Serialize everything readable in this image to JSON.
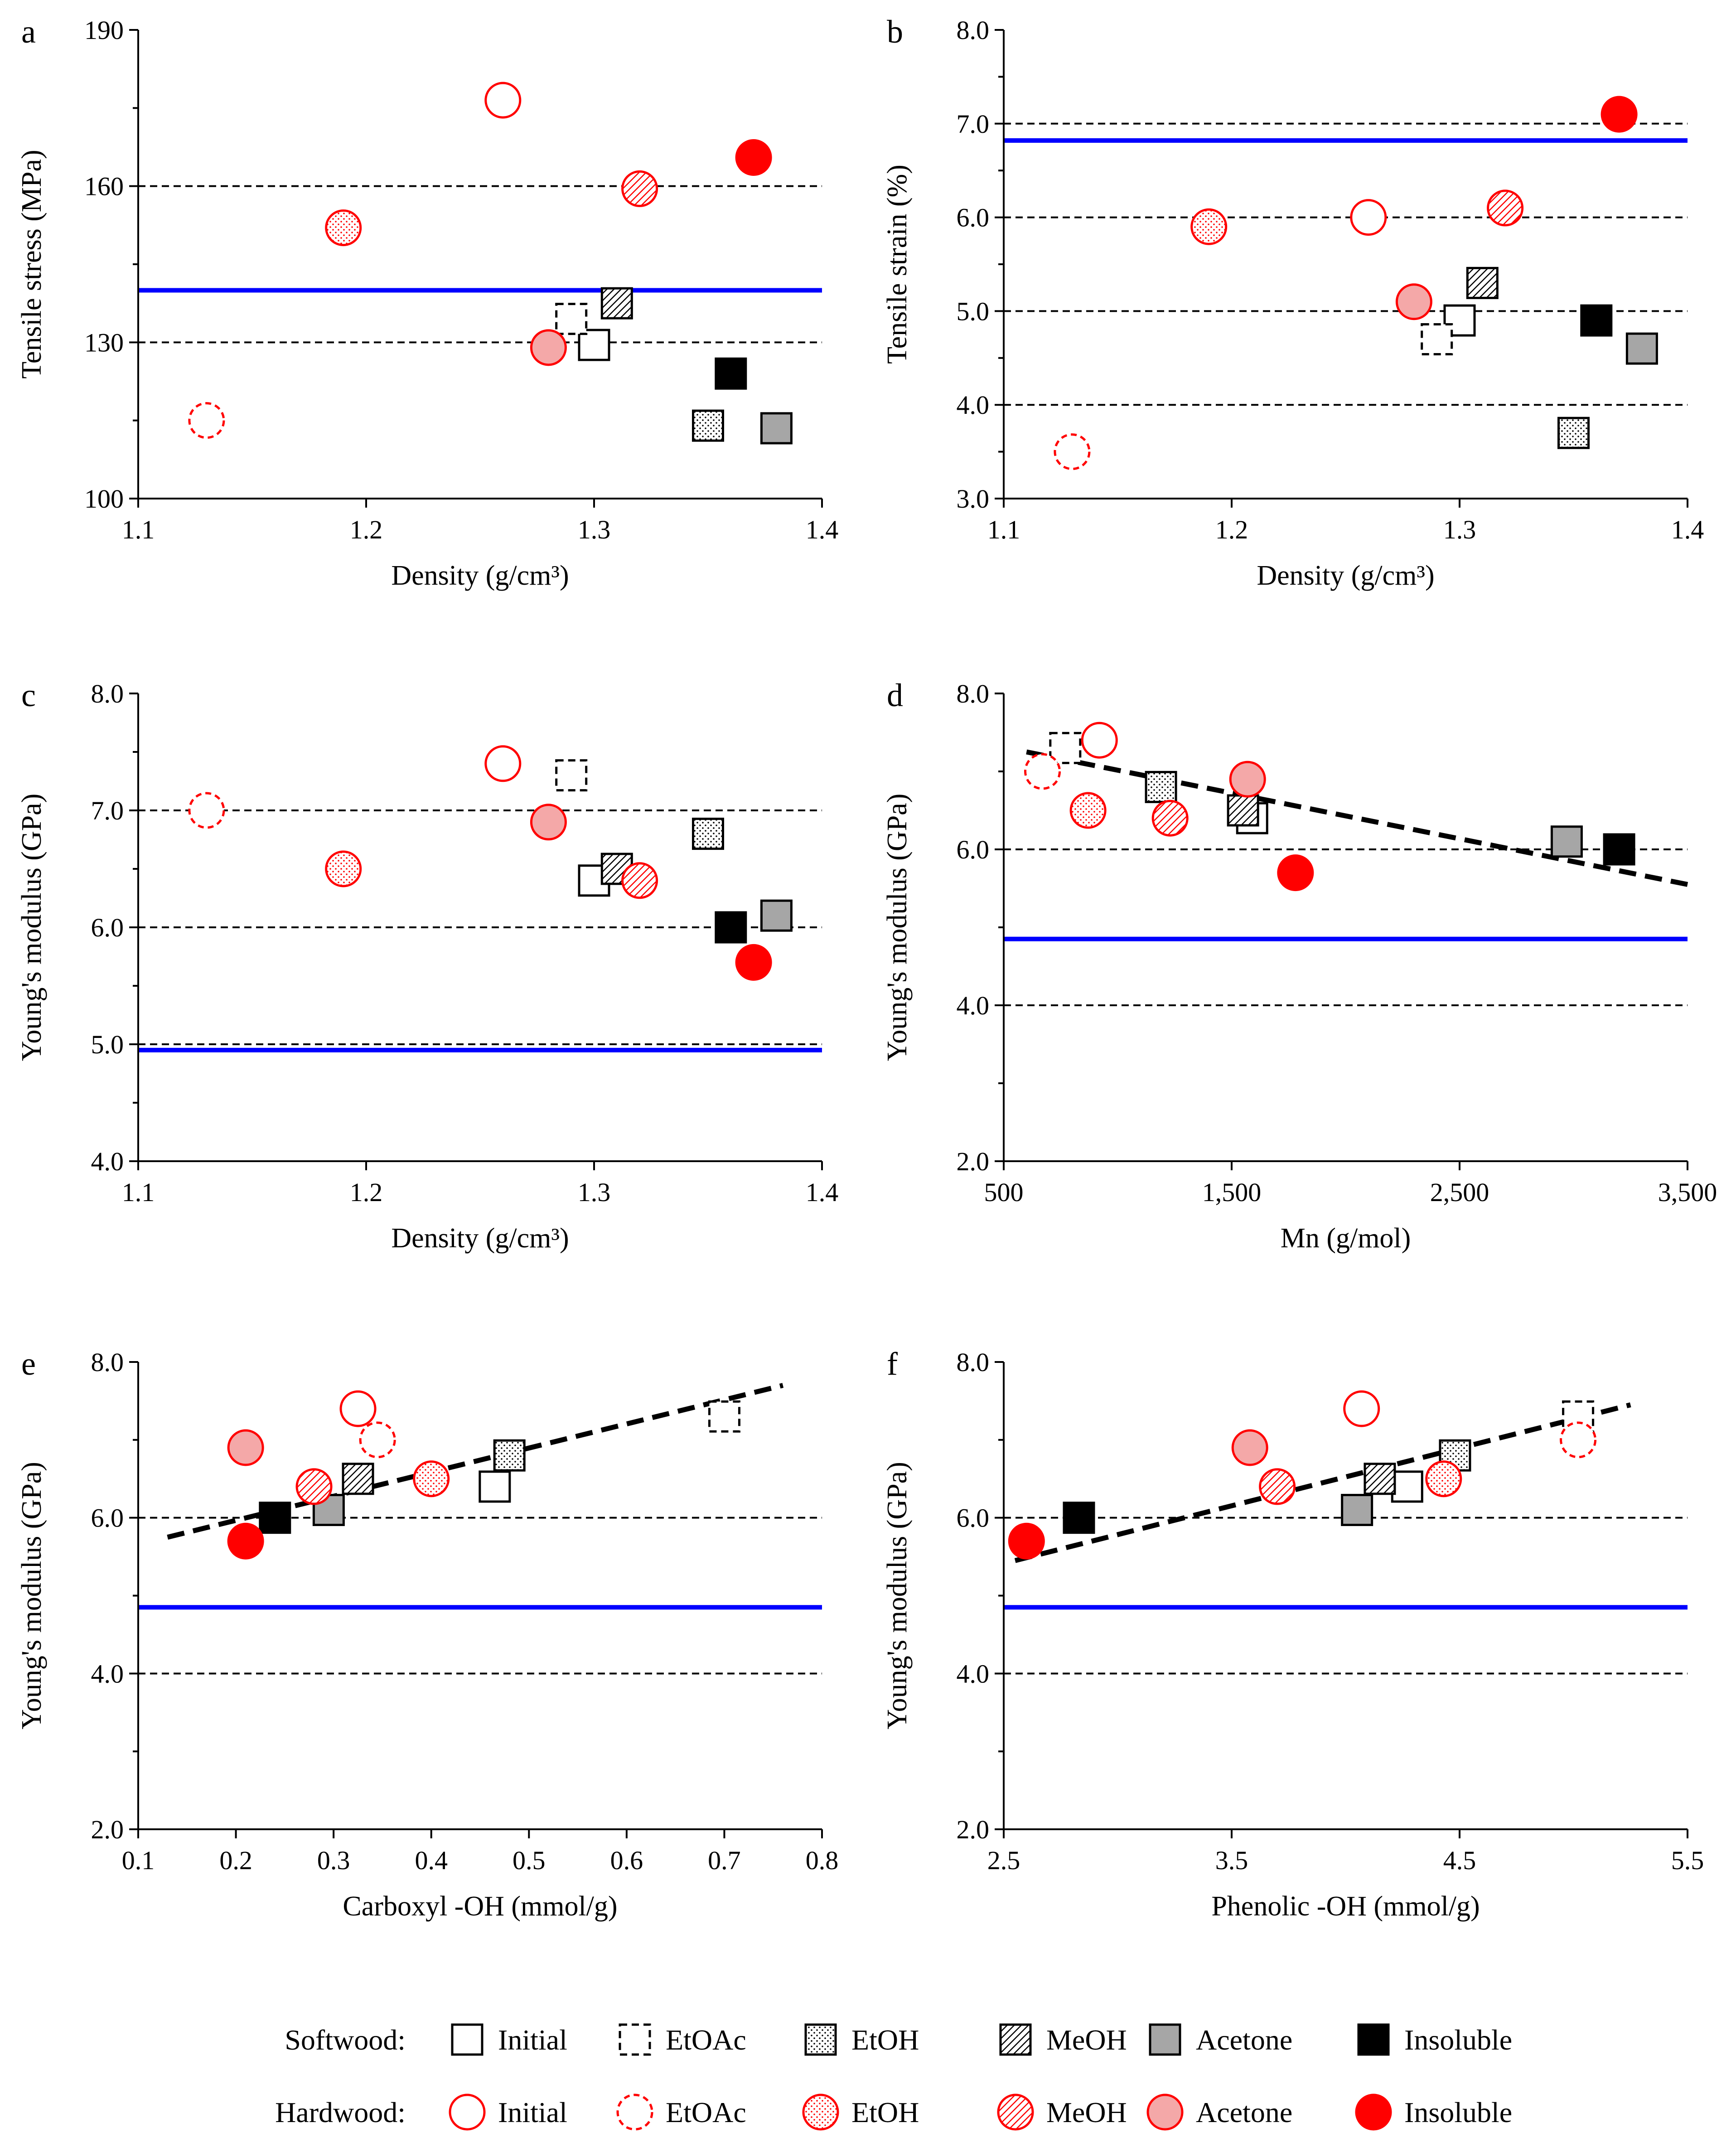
{
  "chart_data": [
    {
      "panel": "a",
      "type": "scatter",
      "xlabel": "Density (g/cm³)",
      "ylabel": "Tensile stress (MPa)",
      "xlim": [
        1.1,
        1.4
      ],
      "ylim": [
        100,
        190
      ],
      "xticks": [
        1.1,
        1.2,
        1.3,
        1.4
      ],
      "xtick_labels": [
        "1.1",
        "1.2",
        "1.3",
        "1.4"
      ],
      "yticks": [
        100,
        130,
        160,
        190
      ],
      "ytick_labels": [
        "100",
        "130",
        "160",
        "190"
      ],
      "ref_lines_dashed": [
        130,
        160
      ],
      "ref_line_blue": 140,
      "points": [
        {
          "wood": "softwood",
          "fraction": "Initial",
          "x": 1.3,
          "y": 129.5
        },
        {
          "wood": "softwood",
          "fraction": "EtOAc",
          "x": 1.29,
          "y": 134.5
        },
        {
          "wood": "softwood",
          "fraction": "EtOH",
          "x": 1.35,
          "y": 114
        },
        {
          "wood": "softwood",
          "fraction": "MeOH",
          "x": 1.31,
          "y": 137.5
        },
        {
          "wood": "softwood",
          "fraction": "Acetone",
          "x": 1.38,
          "y": 113.5
        },
        {
          "wood": "softwood",
          "fraction": "Insoluble",
          "x": 1.36,
          "y": 124
        },
        {
          "wood": "hardwood",
          "fraction": "Initial",
          "x": 1.26,
          "y": 176.5
        },
        {
          "wood": "hardwood",
          "fraction": "EtOAc",
          "x": 1.13,
          "y": 115
        },
        {
          "wood": "hardwood",
          "fraction": "EtOH",
          "x": 1.19,
          "y": 152
        },
        {
          "wood": "hardwood",
          "fraction": "MeOH",
          "x": 1.32,
          "y": 159.5
        },
        {
          "wood": "hardwood",
          "fraction": "Acetone",
          "x": 1.28,
          "y": 129
        },
        {
          "wood": "hardwood",
          "fraction": "Insoluble",
          "x": 1.37,
          "y": 165.5
        }
      ]
    },
    {
      "panel": "b",
      "type": "scatter",
      "xlabel": "Density (g/cm³)",
      "ylabel": "Tensile strain (%)",
      "xlim": [
        1.1,
        1.4
      ],
      "ylim": [
        3.0,
        8.0
      ],
      "xticks": [
        1.1,
        1.2,
        1.3,
        1.4
      ],
      "xtick_labels": [
        "1.1",
        "1.2",
        "1.3",
        "1.4"
      ],
      "yticks": [
        3,
        4,
        5,
        6,
        7,
        8
      ],
      "ytick_labels": [
        "3.0",
        "4.0",
        "5.0",
        "6.0",
        "7.0",
        "8.0"
      ],
      "ref_lines_dashed": [
        4.0,
        5.0,
        6.0,
        7.0
      ],
      "ref_line_blue": 6.82,
      "points": [
        {
          "wood": "softwood",
          "fraction": "Initial",
          "x": 1.3,
          "y": 4.9
        },
        {
          "wood": "softwood",
          "fraction": "EtOAc",
          "x": 1.29,
          "y": 4.7
        },
        {
          "wood": "softwood",
          "fraction": "EtOH",
          "x": 1.35,
          "y": 3.7
        },
        {
          "wood": "softwood",
          "fraction": "MeOH",
          "x": 1.31,
          "y": 5.3
        },
        {
          "wood": "softwood",
          "fraction": "Acetone",
          "x": 1.38,
          "y": 4.6
        },
        {
          "wood": "softwood",
          "fraction": "Insoluble",
          "x": 1.36,
          "y": 4.9
        },
        {
          "wood": "hardwood",
          "fraction": "Initial",
          "x": 1.26,
          "y": 6.0
        },
        {
          "wood": "hardwood",
          "fraction": "EtOAc",
          "x": 1.13,
          "y": 3.5
        },
        {
          "wood": "hardwood",
          "fraction": "EtOH",
          "x": 1.19,
          "y": 5.9
        },
        {
          "wood": "hardwood",
          "fraction": "MeOH",
          "x": 1.32,
          "y": 6.1
        },
        {
          "wood": "hardwood",
          "fraction": "Acetone",
          "x": 1.28,
          "y": 5.1
        },
        {
          "wood": "hardwood",
          "fraction": "Insoluble",
          "x": 1.37,
          "y": 7.1
        }
      ]
    },
    {
      "panel": "c",
      "type": "scatter",
      "xlabel": "Density (g/cm³)",
      "ylabel": "Young's modulus (GPa)",
      "xlim": [
        1.1,
        1.4
      ],
      "ylim": [
        4.0,
        8.0
      ],
      "xticks": [
        1.1,
        1.2,
        1.3,
        1.4
      ],
      "xtick_labels": [
        "1.1",
        "1.2",
        "1.3",
        "1.4"
      ],
      "yticks": [
        4,
        5,
        6,
        7,
        8
      ],
      "ytick_labels": [
        "4.0",
        "5.0",
        "6.0",
        "7.0",
        "8.0"
      ],
      "ref_lines_dashed": [
        5.0,
        6.0,
        7.0
      ],
      "ref_line_blue": 4.95,
      "points": [
        {
          "wood": "softwood",
          "fraction": "Initial",
          "x": 1.3,
          "y": 6.4
        },
        {
          "wood": "softwood",
          "fraction": "EtOAc",
          "x": 1.29,
          "y": 7.3
        },
        {
          "wood": "softwood",
          "fraction": "EtOH",
          "x": 1.35,
          "y": 6.8
        },
        {
          "wood": "softwood",
          "fraction": "MeOH",
          "x": 1.31,
          "y": 6.5
        },
        {
          "wood": "softwood",
          "fraction": "Acetone",
          "x": 1.38,
          "y": 6.1
        },
        {
          "wood": "softwood",
          "fraction": "Insoluble",
          "x": 1.36,
          "y": 6.0
        },
        {
          "wood": "hardwood",
          "fraction": "Initial",
          "x": 1.26,
          "y": 7.4
        },
        {
          "wood": "hardwood",
          "fraction": "EtOAc",
          "x": 1.13,
          "y": 7.0
        },
        {
          "wood": "hardwood",
          "fraction": "EtOH",
          "x": 1.19,
          "y": 6.5
        },
        {
          "wood": "hardwood",
          "fraction": "MeOH",
          "x": 1.32,
          "y": 6.4
        },
        {
          "wood": "hardwood",
          "fraction": "Acetone",
          "x": 1.28,
          "y": 6.9
        },
        {
          "wood": "hardwood",
          "fraction": "Insoluble",
          "x": 1.37,
          "y": 5.7
        }
      ]
    },
    {
      "panel": "d",
      "type": "scatter",
      "xlabel": "Mn (g/mol)",
      "ylabel": "Young's modulus (GPa)",
      "xlim": [
        500,
        3500
      ],
      "ylim": [
        2.0,
        8.0
      ],
      "xticks": [
        500,
        1500,
        2500,
        3500
      ],
      "xtick_labels": [
        "500",
        "1,500",
        "2,500",
        "3,500"
      ],
      "yticks": [
        2,
        4,
        6,
        8
      ],
      "ytick_labels": [
        "2.0",
        "4.0",
        "6.0",
        "8.0"
      ],
      "ref_lines_dashed": [
        4.0,
        6.0
      ],
      "ref_line_blue": 4.85,
      "trendline": {
        "x": [
          600,
          3500
        ],
        "y": [
          7.25,
          5.55
        ]
      },
      "points": [
        {
          "wood": "softwood",
          "fraction": "Initial",
          "x": 1590,
          "y": 6.4
        },
        {
          "wood": "softwood",
          "fraction": "EtOAc",
          "x": 770,
          "y": 7.3
        },
        {
          "wood": "softwood",
          "fraction": "EtOH",
          "x": 1190,
          "y": 6.8
        },
        {
          "wood": "softwood",
          "fraction": "MeOH",
          "x": 1550,
          "y": 6.5
        },
        {
          "wood": "softwood",
          "fraction": "Acetone",
          "x": 2970,
          "y": 6.1
        },
        {
          "wood": "softwood",
          "fraction": "Insoluble",
          "x": 3200,
          "y": 6.0
        },
        {
          "wood": "hardwood",
          "fraction": "Initial",
          "x": 920,
          "y": 7.4
        },
        {
          "wood": "hardwood",
          "fraction": "EtOAc",
          "x": 670,
          "y": 7.0
        },
        {
          "wood": "hardwood",
          "fraction": "EtOH",
          "x": 870,
          "y": 6.5
        },
        {
          "wood": "hardwood",
          "fraction": "MeOH",
          "x": 1230,
          "y": 6.4
        },
        {
          "wood": "hardwood",
          "fraction": "Acetone",
          "x": 1570,
          "y": 6.9
        },
        {
          "wood": "hardwood",
          "fraction": "Insoluble",
          "x": 1780,
          "y": 5.7
        }
      ]
    },
    {
      "panel": "e",
      "type": "scatter",
      "xlabel": "Carboxyl -OH (mmol/g)",
      "ylabel": "Young's modulus (GPa)",
      "xlim": [
        0.1,
        0.8
      ],
      "ylim": [
        2.0,
        8.0
      ],
      "xticks": [
        0.1,
        0.2,
        0.3,
        0.4,
        0.5,
        0.6,
        0.7,
        0.8
      ],
      "xtick_labels": [
        "0.1",
        "0.2",
        "0.3",
        "0.4",
        "0.5",
        "0.6",
        "0.7",
        "0.8"
      ],
      "yticks": [
        2,
        4,
        6,
        8
      ],
      "ytick_labels": [
        "2.0",
        "4.0",
        "6.0",
        "8.0"
      ],
      "ref_lines_dashed": [
        4.0,
        6.0
      ],
      "ref_line_blue": 4.85,
      "trendline": {
        "x": [
          0.13,
          0.76
        ],
        "y": [
          5.75,
          7.7
        ]
      },
      "points": [
        {
          "wood": "softwood",
          "fraction": "Initial",
          "x": 0.465,
          "y": 6.4
        },
        {
          "wood": "softwood",
          "fraction": "EtOAc",
          "x": 0.7,
          "y": 7.3
        },
        {
          "wood": "softwood",
          "fraction": "EtOH",
          "x": 0.48,
          "y": 6.8
        },
        {
          "wood": "softwood",
          "fraction": "MeOH",
          "x": 0.325,
          "y": 6.5
        },
        {
          "wood": "softwood",
          "fraction": "Acetone",
          "x": 0.295,
          "y": 6.1
        },
        {
          "wood": "softwood",
          "fraction": "Insoluble",
          "x": 0.24,
          "y": 6.0
        },
        {
          "wood": "hardwood",
          "fraction": "Initial",
          "x": 0.325,
          "y": 7.4
        },
        {
          "wood": "hardwood",
          "fraction": "EtOAc",
          "x": 0.345,
          "y": 7.0
        },
        {
          "wood": "hardwood",
          "fraction": "EtOH",
          "x": 0.4,
          "y": 6.5
        },
        {
          "wood": "hardwood",
          "fraction": "MeOH",
          "x": 0.28,
          "y": 6.4
        },
        {
          "wood": "hardwood",
          "fraction": "Acetone",
          "x": 0.21,
          "y": 6.9
        },
        {
          "wood": "hardwood",
          "fraction": "Insoluble",
          "x": 0.21,
          "y": 5.7
        }
      ]
    },
    {
      "panel": "f",
      "type": "scatter",
      "xlabel": "Phenolic -OH (mmol/g)",
      "ylabel": "Young's modulus (GPa)",
      "xlim": [
        2.5,
        5.5
      ],
      "ylim": [
        2.0,
        8.0
      ],
      "xticks": [
        2.5,
        3.5,
        4.5,
        5.5
      ],
      "xtick_labels": [
        "2.5",
        "3.5",
        "4.5",
        "5.5"
      ],
      "yticks": [
        2,
        4,
        6,
        8
      ],
      "ytick_labels": [
        "2.0",
        "4.0",
        "6.0",
        "8.0"
      ],
      "ref_lines_dashed": [
        4.0,
        6.0
      ],
      "ref_line_blue": 4.85,
      "trendline": {
        "x": [
          2.55,
          5.25
        ],
        "y": [
          5.45,
          7.45
        ]
      },
      "points": [
        {
          "wood": "softwood",
          "fraction": "Initial",
          "x": 4.27,
          "y": 6.4
        },
        {
          "wood": "softwood",
          "fraction": "EtOAc",
          "x": 5.02,
          "y": 7.3
        },
        {
          "wood": "softwood",
          "fraction": "EtOH",
          "x": 4.48,
          "y": 6.8
        },
        {
          "wood": "softwood",
          "fraction": "MeOH",
          "x": 4.15,
          "y": 6.5
        },
        {
          "wood": "softwood",
          "fraction": "Acetone",
          "x": 4.05,
          "y": 6.1
        },
        {
          "wood": "softwood",
          "fraction": "Insoluble",
          "x": 2.83,
          "y": 6.0
        },
        {
          "wood": "hardwood",
          "fraction": "Initial",
          "x": 4.07,
          "y": 7.4
        },
        {
          "wood": "hardwood",
          "fraction": "EtOAc",
          "x": 5.02,
          "y": 7.0
        },
        {
          "wood": "hardwood",
          "fraction": "EtOH",
          "x": 4.43,
          "y": 6.5
        },
        {
          "wood": "hardwood",
          "fraction": "MeOH",
          "x": 3.7,
          "y": 6.4
        },
        {
          "wood": "hardwood",
          "fraction": "Acetone",
          "x": 3.58,
          "y": 6.9
        },
        {
          "wood": "hardwood",
          "fraction": "Insoluble",
          "x": 2.6,
          "y": 5.7
        }
      ]
    }
  ],
  "legend": {
    "rows": [
      {
        "wood": "softwood",
        "label": "Softwood:"
      },
      {
        "wood": "hardwood",
        "label": "Hardwood:"
      }
    ],
    "fractions": [
      "Initial",
      "EtOAc",
      "EtOH",
      "MeOH",
      "Acetone",
      "Insoluble"
    ]
  },
  "colors": {
    "softwood": "#000000",
    "hardwood": "#ff0000",
    "hardwood_light": "#f4a8a8",
    "acetone_gray": "#a6a6a6",
    "ref_blue": "#0000ff"
  }
}
